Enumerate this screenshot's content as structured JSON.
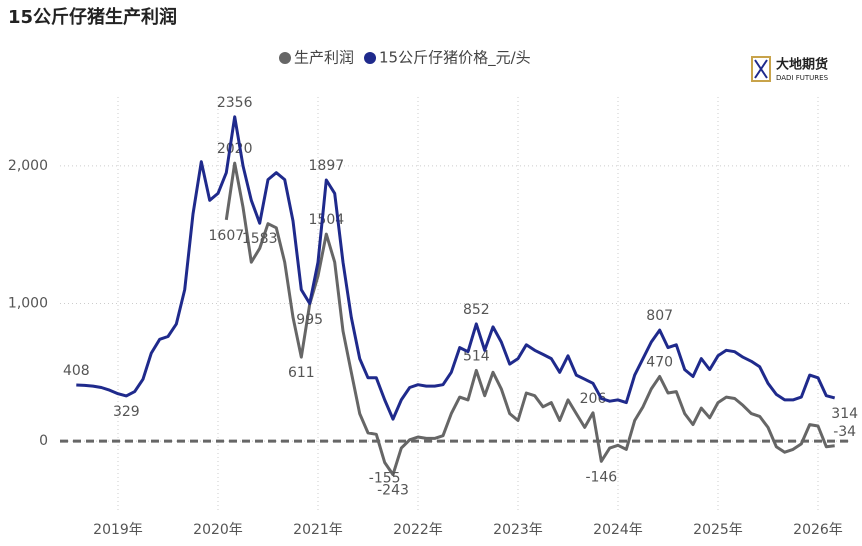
{
  "chart_data": {
    "type": "line",
    "title": "15公斤仔猪生产利润",
    "logo": {
      "name": "大地期货",
      "sub": "DADI FUTURES"
    },
    "categories": [
      null,
      null,
      null,
      null,
      null,
      "2019年",
      null,
      null,
      null,
      null,
      null,
      null,
      null,
      null,
      null,
      null,
      null,
      "2020年",
      null,
      null,
      null,
      null,
      null,
      null,
      null,
      null,
      null,
      null,
      null,
      "2021年",
      null,
      null,
      null,
      null,
      null,
      null,
      null,
      null,
      null,
      null,
      null,
      "2022年",
      null,
      null,
      null,
      null,
      null,
      null,
      null,
      null,
      null,
      null,
      null,
      "2023年",
      null,
      null,
      null,
      null,
      null,
      null,
      null,
      null,
      null,
      null,
      null,
      "2024年",
      null,
      null,
      null,
      null,
      null,
      null,
      null,
      null,
      null,
      null,
      null,
      "2025年",
      null,
      null,
      null,
      null,
      null,
      null,
      null,
      null,
      null,
      null,
      null,
      "2026年",
      null,
      null
    ],
    "series": [
      {
        "name": "生产利润",
        "color": "#666666",
        "values": [
          null,
          null,
          null,
          null,
          null,
          null,
          null,
          null,
          null,
          null,
          null,
          null,
          null,
          null,
          null,
          null,
          null,
          null,
          1607,
          2020,
          1700,
          1300,
          1400,
          1580,
          1550,
          1300,
          900,
          611,
          995,
          1200,
          1504,
          1300,
          800,
          500,
          200,
          60,
          50,
          -155,
          -243,
          -50,
          10,
          30,
          20,
          20,
          40,
          200,
          320,
          300,
          514,
          330,
          500,
          380,
          200,
          150,
          350,
          330,
          250,
          280,
          150,
          300,
          200,
          100,
          206,
          -146,
          -50,
          -30,
          -60,
          150,
          250,
          380,
          470,
          350,
          360,
          200,
          120,
          240,
          170,
          280,
          320,
          310,
          260,
          200,
          180,
          100,
          -40,
          -80,
          -60,
          -20,
          120,
          110,
          -40,
          -34
        ],
        "value_labels": [
          null,
          null,
          null,
          null,
          null,
          null,
          null,
          null,
          null,
          null,
          null,
          null,
          null,
          null,
          null,
          null,
          null,
          null,
          "1607",
          "2020",
          null,
          null,
          null,
          null,
          null,
          null,
          null,
          "611",
          "995",
          null,
          "1504",
          null,
          null,
          null,
          null,
          null,
          null,
          "-155",
          "-243",
          null,
          null,
          null,
          null,
          null,
          null,
          null,
          null,
          null,
          "514",
          null,
          null,
          null,
          null,
          null,
          null,
          null,
          null,
          null,
          null,
          null,
          null,
          null,
          "206",
          "-146",
          null,
          null,
          null,
          null,
          null,
          null,
          "470",
          null,
          null,
          null,
          null,
          null,
          null,
          null,
          null,
          null,
          null,
          null,
          null,
          null,
          null,
          null,
          null,
          null,
          null,
          null,
          null,
          "-34"
        ]
      },
      {
        "name": "15公斤仔猪价格_元/头",
        "color": "#1f2a8c",
        "values": [
          408,
          405,
          400,
          390,
          370,
          345,
          329,
          360,
          450,
          640,
          740,
          760,
          850,
          1100,
          1650,
          2030,
          1750,
          1800,
          1950,
          2356,
          2000,
          1750,
          1583,
          1900,
          1950,
          1900,
          1600,
          1100,
          1000,
          1300,
          1897,
          1800,
          1300,
          900,
          600,
          460,
          460,
          300,
          160,
          300,
          390,
          410,
          400,
          400,
          410,
          500,
          680,
          650,
          852,
          660,
          830,
          720,
          560,
          600,
          700,
          660,
          630,
          600,
          500,
          620,
          480,
          450,
          420,
          310,
          290,
          300,
          280,
          480,
          600,
          720,
          807,
          680,
          700,
          520,
          470,
          600,
          520,
          620,
          660,
          650,
          610,
          580,
          540,
          420,
          340,
          300,
          300,
          320,
          480,
          460,
          330,
          314
        ],
        "value_labels": [
          "408",
          null,
          null,
          null,
          null,
          null,
          "329",
          null,
          null,
          null,
          null,
          null,
          null,
          null,
          null,
          null,
          null,
          null,
          null,
          "2356",
          null,
          null,
          "1583",
          null,
          null,
          null,
          null,
          null,
          null,
          null,
          "1897",
          null,
          null,
          null,
          null,
          null,
          null,
          null,
          null,
          null,
          null,
          null,
          null,
          null,
          null,
          null,
          null,
          null,
          "852",
          null,
          null,
          null,
          null,
          null,
          null,
          null,
          null,
          null,
          null,
          null,
          null,
          null,
          null,
          null,
          null,
          null,
          null,
          null,
          null,
          null,
          "807",
          null,
          null,
          null,
          null,
          null,
          null,
          null,
          null,
          null,
          null,
          null,
          null,
          null,
          null,
          null,
          null,
          null,
          null,
          null,
          null,
          "314"
        ]
      }
    ],
    "ylim": [
      -500,
      2500
    ],
    "yticks": [
      0,
      {
        "value": 1000,
        "label": "1,000"
      },
      {
        "value": 2000,
        "label": "2,000"
      }
    ],
    "grid": true,
    "legend": "top"
  }
}
